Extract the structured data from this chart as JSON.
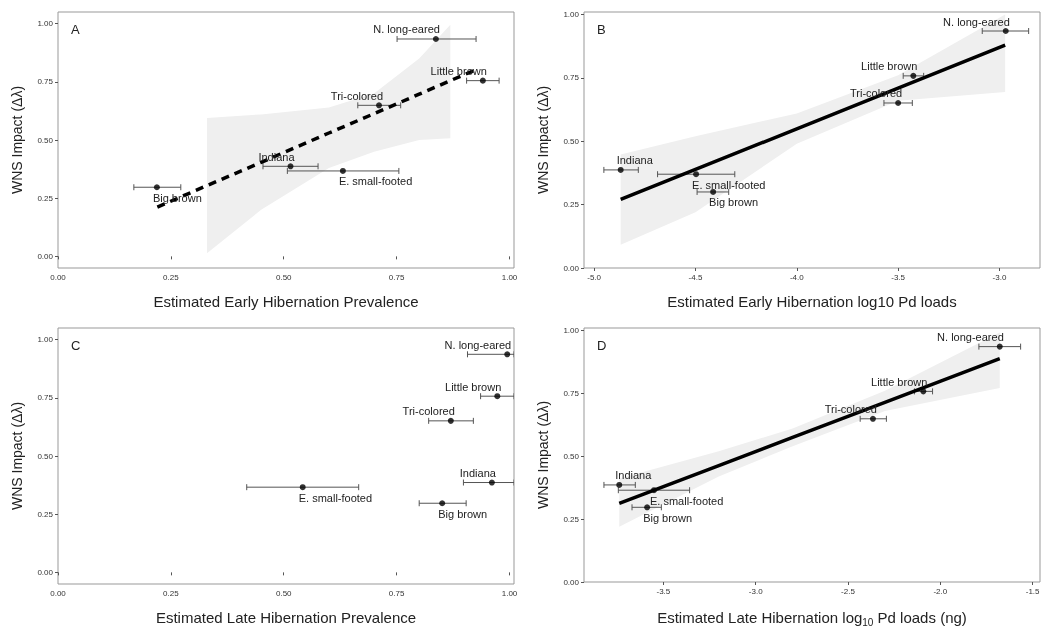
{
  "chart_data": [
    {
      "type": "scatter",
      "title": "A",
      "xlabel": "Estimated Early Hibernation Prevalence",
      "ylabel": "WNS Impact (Δλ)",
      "xlim": [
        0,
        1.01
      ],
      "ylim": [
        -0.05,
        1.05
      ],
      "xticks": [
        {
          "value": 0,
          "label": "0.00"
        },
        {
          "value": 0.25,
          "label": "0.25"
        },
        {
          "value": 0.5,
          "label": "0.50"
        },
        {
          "value": 0.75,
          "label": "0.75"
        },
        {
          "value": 1,
          "label": "1.00"
        }
      ],
      "yticks": [
        {
          "value": 0,
          "label": "0.00"
        },
        {
          "value": 0.25,
          "label": "0.25"
        },
        {
          "value": 0.5,
          "label": "0.50"
        },
        {
          "value": 0.75,
          "label": "0.75"
        },
        {
          "value": 1,
          "label": "1.00"
        }
      ],
      "series": [
        {
          "type": "scatter",
          "color": "#000000",
          "marker": "circle",
          "x": [
            0.837,
            0.941,
            0.711,
            0.515,
            0.631,
            0.219
          ],
          "values": [
            0.934,
            0.755,
            0.649,
            0.387,
            0.367,
            0.297
          ],
          "xerrors": [
            [
              0.751,
              0.926
            ],
            [
              0.905,
              0.977
            ],
            [
              0.664,
              0.759
            ],
            [
              0.454,
              0.576
            ],
            [
              0.508,
              0.755
            ],
            [
              0.168,
              0.272
            ]
          ]
        },
        {
          "type": "line",
          "color": "#000000",
          "line_style": "dashed",
          "x": [
            0.22,
            0.33,
            0.45,
            0.6,
            0.7,
            0.8,
            0.869,
            0.928
          ],
          "values": [
            0.212,
            0.304,
            0.404,
            0.53,
            0.613,
            0.697,
            0.755,
            0.804
          ],
          "lower": [
            null,
            0.013,
            0.2,
            0.38,
            0.45,
            0.5,
            0.508,
            null
          ],
          "upper": [
            null,
            0.595,
            0.61,
            0.64,
            0.7,
            0.85,
            0.995,
            null
          ]
        }
      ],
      "annotations": [
        {
          "text": "N. long-eared",
          "x": 0.837,
          "y": 0.934
        },
        {
          "text": "Little brown",
          "x": 0.941,
          "y": 0.755
        },
        {
          "text": "Tri-colored",
          "x": 0.711,
          "y": 0.649
        },
        {
          "text": "Indiana",
          "x": 0.515,
          "y": 0.387
        },
        {
          "text": "E. small-footed",
          "x": 0.631,
          "y": 0.367
        },
        {
          "text": "Big brown",
          "x": 0.219,
          "y": 0.297
        }
      ]
    },
    {
      "type": "scatter",
      "title": "B",
      "xlabel": "Estimated Early Hibernation log10 Pd loads",
      "ylabel": "WNS Impact (Δλ)",
      "xlim": [
        -5.05,
        -2.8
      ],
      "ylim": [
        0,
        1.01
      ],
      "xticks": [
        {
          "value": -5,
          "label": "-5.0"
        },
        {
          "value": -4.5,
          "label": "-4.5"
        },
        {
          "value": -4,
          "label": "-4.0"
        },
        {
          "value": -3.5,
          "label": "-3.5"
        },
        {
          "value": -3,
          "label": "-3.0"
        }
      ],
      "yticks": [
        {
          "value": 0,
          "label": "0.00"
        },
        {
          "value": 0.25,
          "label": "0.25"
        },
        {
          "value": 0.5,
          "label": "0.50"
        },
        {
          "value": 0.75,
          "label": "0.75"
        },
        {
          "value": 1,
          "label": "1.00"
        }
      ],
      "series": [
        {
          "type": "scatter",
          "color": "#000000",
          "marker": "circle",
          "x": [
            -2.969,
            -3.425,
            -3.5,
            -4.869,
            -4.497,
            -4.413
          ],
          "values": [
            0.935,
            0.758,
            0.651,
            0.387,
            0.37,
            0.3
          ],
          "xerrors": [
            [
              -3.085,
              -2.856
            ],
            [
              -3.475,
              -3.374
            ],
            [
              -3.57,
              -3.43
            ],
            [
              -4.952,
              -4.782
            ],
            [
              -4.687,
              -4.306
            ],
            [
              -4.492,
              -4.336
            ]
          ]
        },
        {
          "type": "line",
          "color": "#000000",
          "line_style": "solid",
          "x": [
            -4.869,
            -4.5,
            -4.0,
            -3.5,
            -2.972
          ],
          "values": [
            0.271,
            0.389,
            0.549,
            0.71,
            0.879
          ],
          "lower": [
            0.092,
            0.22,
            0.49,
            0.66,
            0.694
          ],
          "upper": [
            0.448,
            0.52,
            0.61,
            0.76,
            1.0
          ]
        }
      ],
      "annotations": [
        {
          "text": "N. long-eared",
          "x": -2.969,
          "y": 0.935
        },
        {
          "text": "Little brown",
          "x": -3.425,
          "y": 0.758
        },
        {
          "text": "Tri-colored",
          "x": -3.5,
          "y": 0.651
        },
        {
          "text": "Indiana",
          "x": -4.869,
          "y": 0.387
        },
        {
          "text": "E. small-footed",
          "x": -4.497,
          "y": 0.37
        },
        {
          "text": "Big brown",
          "x": -4.413,
          "y": 0.3
        }
      ]
    },
    {
      "type": "scatter",
      "title": "C",
      "xlabel": "Estimated Late Hibernation Prevalence",
      "ylabel": "WNS Impact (Δλ)",
      "xlim": [
        0,
        1.01
      ],
      "ylim": [
        -0.05,
        1.05
      ],
      "xticks": [
        {
          "value": 0,
          "label": "0.00"
        },
        {
          "value": 0.25,
          "label": "0.25"
        },
        {
          "value": 0.5,
          "label": "0.50"
        },
        {
          "value": 0.75,
          "label": "0.75"
        },
        {
          "value": 1,
          "label": "1.00"
        }
      ],
      "yticks": [
        {
          "value": 0,
          "label": "0.00"
        },
        {
          "value": 0.25,
          "label": "0.25"
        },
        {
          "value": 0.5,
          "label": "0.50"
        },
        {
          "value": 0.75,
          "label": "0.75"
        },
        {
          "value": 1,
          "label": "1.00"
        }
      ],
      "series": [
        {
          "type": "scatter",
          "color": "#000000",
          "marker": "circle",
          "x": [
            0.995,
            0.973,
            0.87,
            0.961,
            0.542,
            0.851
          ],
          "values": [
            0.937,
            0.757,
            0.651,
            0.386,
            0.366,
            0.297
          ],
          "xerrors": [
            [
              0.907,
              1.01
            ],
            [
              0.936,
              1.01
            ],
            [
              0.821,
              0.92
            ],
            [
              0.898,
              1.01
            ],
            [
              0.418,
              0.666
            ],
            [
              0.8,
              0.904
            ]
          ]
        }
      ],
      "annotations": [
        {
          "text": "N. long-eared",
          "x": 0.995,
          "y": 0.937
        },
        {
          "text": "Little brown",
          "x": 0.973,
          "y": 0.757
        },
        {
          "text": "Tri-colored",
          "x": 0.87,
          "y": 0.651
        },
        {
          "text": "Indiana",
          "x": 0.961,
          "y": 0.386
        },
        {
          "text": "E. small-footed",
          "x": 0.542,
          "y": 0.366
        },
        {
          "text": "Big brown",
          "x": 0.851,
          "y": 0.297
        }
      ]
    },
    {
      "type": "scatter",
      "title": "D",
      "xlabel": "Estimated Late Hibernation log$_{10}$ Pd loads (ng)",
      "ylabel": "WNS Impact (Δλ)",
      "xlim": [
        -3.93,
        -1.46
      ],
      "ylim": [
        0,
        1.01
      ],
      "xticks": [
        {
          "value": -3.5,
          "label": "-3.5"
        },
        {
          "value": -3,
          "label": "-3.0"
        },
        {
          "value": -2.5,
          "label": "-2.5"
        },
        {
          "value": -2,
          "label": "-2.0"
        },
        {
          "value": -1.5,
          "label": "-1.5"
        }
      ],
      "yticks": [
        {
          "value": 0,
          "label": "0.00"
        },
        {
          "value": 0.25,
          "label": "0.25"
        },
        {
          "value": 0.5,
          "label": "0.50"
        },
        {
          "value": 0.75,
          "label": "0.75"
        },
        {
          "value": 1,
          "label": "1.00"
        }
      ],
      "series": [
        {
          "type": "scatter",
          "color": "#000000",
          "marker": "circle",
          "x": [
            -1.678,
            -2.092,
            -2.365,
            -3.739,
            -3.551,
            -3.588
          ],
          "values": [
            0.936,
            0.758,
            0.649,
            0.386,
            0.365,
            0.297
          ],
          "xerrors": [
            [
              -1.791,
              -1.565
            ],
            [
              -2.14,
              -2.042
            ],
            [
              -2.434,
              -2.292
            ],
            [
              -3.822,
              -3.652
            ],
            [
              -3.744,
              -3.358
            ],
            [
              -3.67,
              -3.511
            ]
          ]
        },
        {
          "type": "line",
          "color": "#000000",
          "line_style": "solid",
          "x": [
            -3.739,
            -3.2,
            -2.8,
            -2.3,
            -1.678
          ],
          "values": [
            0.313,
            0.463,
            0.575,
            0.714,
            0.888
          ],
          "lower": [
            0.22,
            0.42,
            0.54,
            0.68,
            0.771
          ],
          "upper": [
            0.412,
            0.52,
            0.61,
            0.76,
            0.992
          ]
        }
      ],
      "annotations": [
        {
          "text": "N. long-eared",
          "x": -1.678,
          "y": 0.936
        },
        {
          "text": "Little brown",
          "x": -2.092,
          "y": 0.758
        },
        {
          "text": "Tri-colored",
          "x": -2.365,
          "y": 0.649
        },
        {
          "text": "Indiana",
          "x": -3.739,
          "y": 0.386
        },
        {
          "text": "E. small-footed",
          "x": -3.551,
          "y": 0.365
        },
        {
          "text": "Big brown",
          "x": -3.588,
          "y": 0.297
        }
      ]
    }
  ]
}
